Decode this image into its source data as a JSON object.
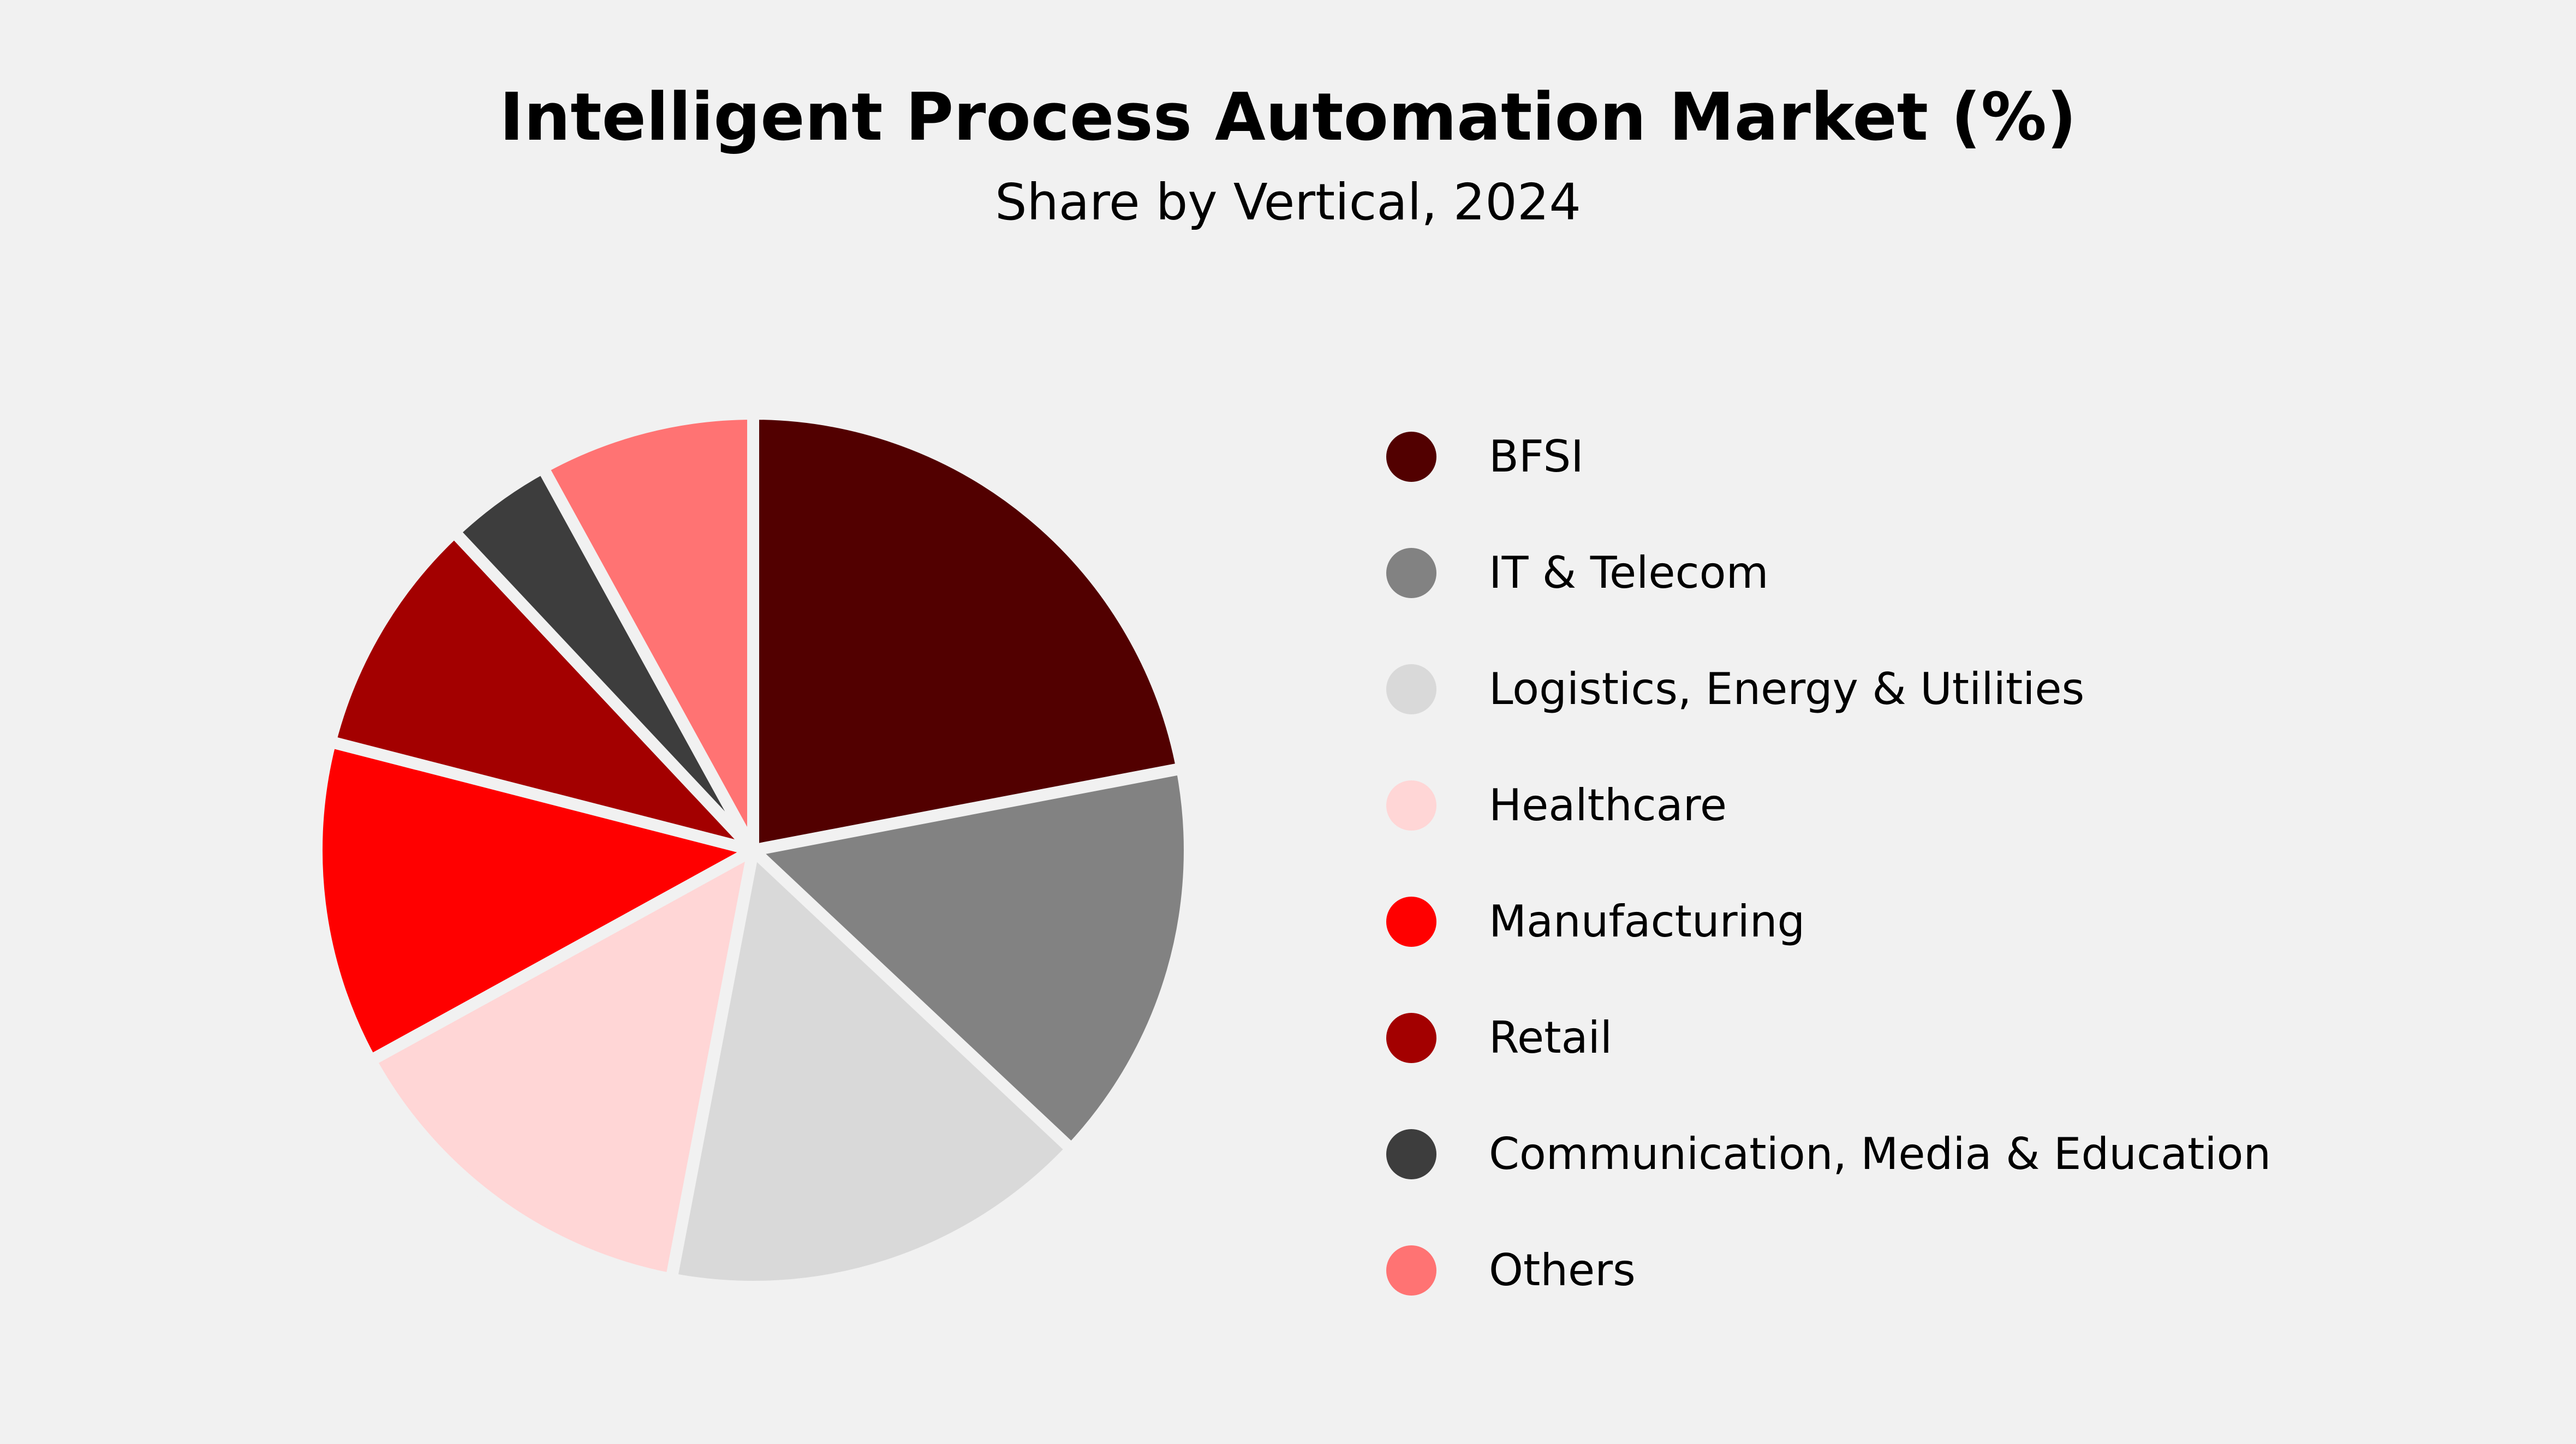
{
  "chart_data": {
    "type": "pie",
    "title": "Intelligent Process Automation Market (%)",
    "subtitle": "Share by Vertical, 2024",
    "legend_position": "right",
    "slices": [
      {
        "label": "BFSI",
        "value": 22,
        "color": "#520000"
      },
      {
        "label": "IT & Telecom",
        "value": 15,
        "color": "#828282"
      },
      {
        "label": "Logistics, Energy & Utilities",
        "value": 16,
        "color": "#d9d9d9"
      },
      {
        "label": "Healthcare",
        "value": 14,
        "color": "#ffd6d6"
      },
      {
        "label": "Manufacturing",
        "value": 12,
        "color": "#ff0000"
      },
      {
        "label": "Retail",
        "value": 9,
        "color": "#a30000"
      },
      {
        "label": "Communication, Media & Education",
        "value": 4,
        "color": "#3d3d3d"
      },
      {
        "label": "Others",
        "value": 8,
        "color": "#ff7373"
      }
    ]
  }
}
